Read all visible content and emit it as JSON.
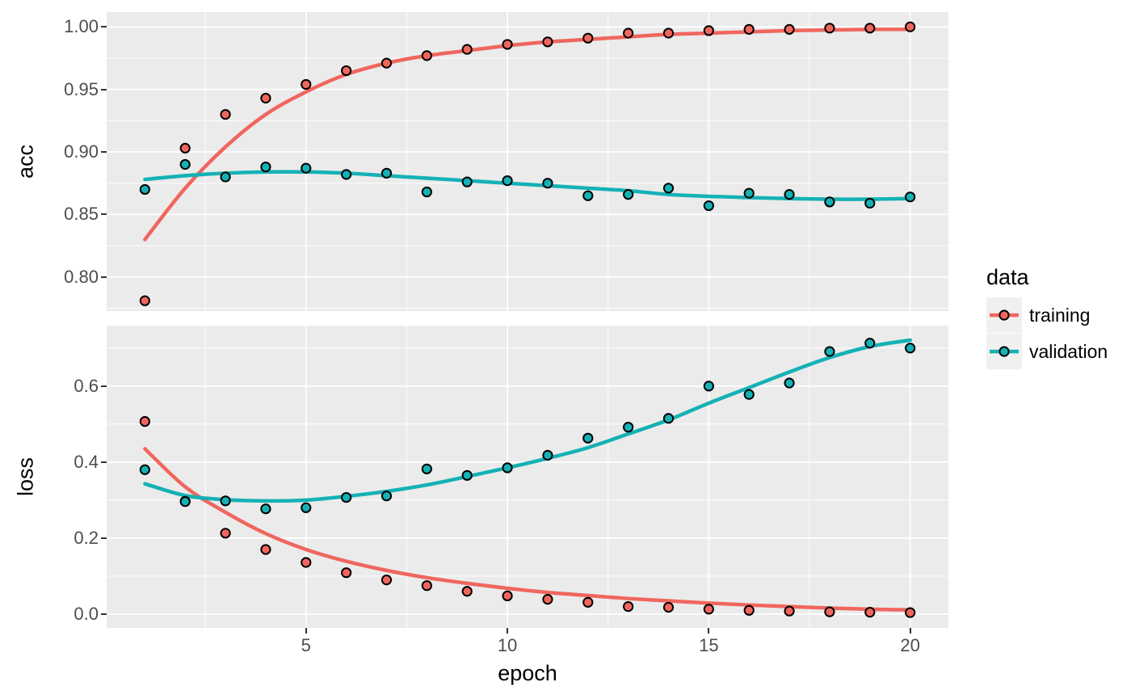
{
  "figure": {
    "background": "#FFFFFF",
    "panel_background": "#EBEBEB",
    "grid_color": "#FFFFFF",
    "tick_color": "#333333",
    "tick_label_color": "#4D4D4D",
    "point_outline": "#000000"
  },
  "colors": {
    "training": "#F0665E",
    "validation": "#14B1B5"
  },
  "legend": {
    "title": "data",
    "entries": [
      {
        "label": "training",
        "color": "#F0665E"
      },
      {
        "label": "validation",
        "color": "#14B1B5"
      }
    ]
  },
  "chart_data": [
    {
      "panel": "acc",
      "type": "scatter",
      "ylabel": "acc",
      "xlabel": "",
      "x": [
        1,
        2,
        3,
        4,
        5,
        6,
        7,
        8,
        9,
        10,
        11,
        12,
        13,
        14,
        15,
        16,
        17,
        18,
        19,
        20
      ],
      "xlim": [
        0.05,
        20.95
      ],
      "ylim": [
        0.7727,
        1.0118
      ],
      "xticks": [
        5,
        10,
        15,
        20
      ],
      "xtick_labels": [
        "5",
        "10",
        "15",
        "20"
      ],
      "xticks_minor": [
        2.5,
        7.5,
        12.5,
        17.5
      ],
      "yticks": [
        0.8,
        0.85,
        0.9,
        0.95,
        1.0
      ],
      "ytick_labels": [
        "0.80",
        "0.85",
        "0.90",
        "0.95",
        "1.00"
      ],
      "yticks_minor": [
        0.775,
        0.825,
        0.875,
        0.925,
        0.975
      ],
      "grid": true,
      "series": [
        {
          "name": "training",
          "points": [
            0.781,
            0.903,
            0.93,
            0.943,
            0.954,
            0.965,
            0.971,
            0.977,
            0.982,
            0.986,
            0.988,
            0.991,
            0.995,
            0.995,
            0.997,
            0.998,
            0.998,
            0.999,
            0.999,
            1.0
          ],
          "smooth": [
            0.83,
            0.871,
            0.904,
            0.93,
            0.948,
            0.962,
            0.971,
            0.977,
            0.981,
            0.985,
            0.988,
            0.99,
            0.992,
            0.994,
            0.995,
            0.996,
            0.997,
            0.9975,
            0.998,
            0.998
          ]
        },
        {
          "name": "validation",
          "points": [
            0.87,
            0.89,
            0.88,
            0.888,
            0.887,
            0.882,
            0.883,
            0.868,
            0.876,
            0.877,
            0.875,
            0.865,
            0.866,
            0.871,
            0.857,
            0.867,
            0.866,
            0.86,
            0.859,
            0.864
          ],
          "smooth": [
            0.878,
            0.881,
            0.883,
            0.884,
            0.884,
            0.883,
            0.881,
            0.879,
            0.877,
            0.875,
            0.873,
            0.871,
            0.869,
            0.866,
            0.8645,
            0.8635,
            0.8627,
            0.8622,
            0.8622,
            0.8627
          ]
        }
      ]
    },
    {
      "panel": "loss",
      "type": "scatter",
      "ylabel": "loss",
      "xlabel": "epoch",
      "x": [
        1,
        2,
        3,
        4,
        5,
        6,
        7,
        8,
        9,
        10,
        11,
        12,
        13,
        14,
        15,
        16,
        17,
        18,
        19,
        20
      ],
      "xlim": [
        0.05,
        20.95
      ],
      "ylim": [
        -0.0362,
        0.759
      ],
      "xticks": [
        5,
        10,
        15,
        20
      ],
      "xtick_labels": [
        "5",
        "10",
        "15",
        "20"
      ],
      "xticks_minor": [
        2.5,
        7.5,
        12.5,
        17.5
      ],
      "yticks": [
        0.0,
        0.2,
        0.4,
        0.6
      ],
      "ytick_labels": [
        "0.0",
        "0.2",
        "0.4",
        "0.6"
      ],
      "yticks_minor": [
        0.1,
        0.3,
        0.5,
        0.7
      ],
      "grid": true,
      "series": [
        {
          "name": "training",
          "points": [
            0.507,
            0.297,
            0.213,
            0.17,
            0.136,
            0.109,
            0.09,
            0.075,
            0.06,
            0.048,
            0.039,
            0.031,
            0.02,
            0.018,
            0.013,
            0.01,
            0.008,
            0.006,
            0.005,
            0.004
          ],
          "smooth": [
            0.435,
            0.335,
            0.268,
            0.212,
            0.17,
            0.139,
            0.115,
            0.096,
            0.081,
            0.068,
            0.057,
            0.049,
            0.041,
            0.035,
            0.029,
            0.024,
            0.02,
            0.016,
            0.013,
            0.011
          ]
        },
        {
          "name": "validation",
          "points": [
            0.38,
            0.296,
            0.298,
            0.277,
            0.28,
            0.307,
            0.311,
            0.382,
            0.365,
            0.385,
            0.418,
            0.463,
            0.492,
            0.515,
            0.6,
            0.578,
            0.608,
            0.691,
            0.713,
            0.7
          ],
          "smooth": [
            0.343,
            0.312,
            0.301,
            0.298,
            0.3,
            0.31,
            0.323,
            0.34,
            0.362,
            0.385,
            0.41,
            0.438,
            0.474,
            0.511,
            0.555,
            0.596,
            0.637,
            0.675,
            0.704,
            0.721
          ]
        }
      ]
    }
  ]
}
